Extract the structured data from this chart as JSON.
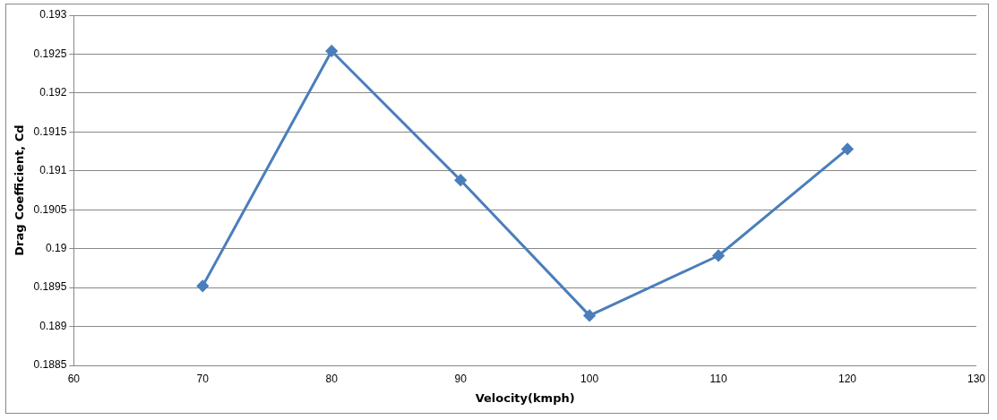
{
  "chart_data": {
    "type": "line",
    "xlabel": "Velocity(kmph)",
    "ylabel": "Drag Coefficient, Cd",
    "x": [
      70,
      80,
      90,
      100,
      110,
      120
    ],
    "series": [
      {
        "color": "#4a7ebb",
        "values": [
          0.18952,
          0.19254,
          0.19088,
          0.18914,
          0.18991,
          0.19128
        ]
      }
    ],
    "xlim": [
      60,
      130
    ],
    "xticks": [
      60,
      70,
      80,
      90,
      100,
      110,
      120,
      130
    ],
    "ylim": [
      0.1885,
      0.193
    ],
    "yticks": [
      0.1885,
      0.189,
      0.1895,
      0.19,
      0.1905,
      0.191,
      0.1915,
      0.192,
      0.1925,
      0.193
    ],
    "grid": "y",
    "marker": "diamond",
    "line_style": "solid",
    "legend": false
  }
}
